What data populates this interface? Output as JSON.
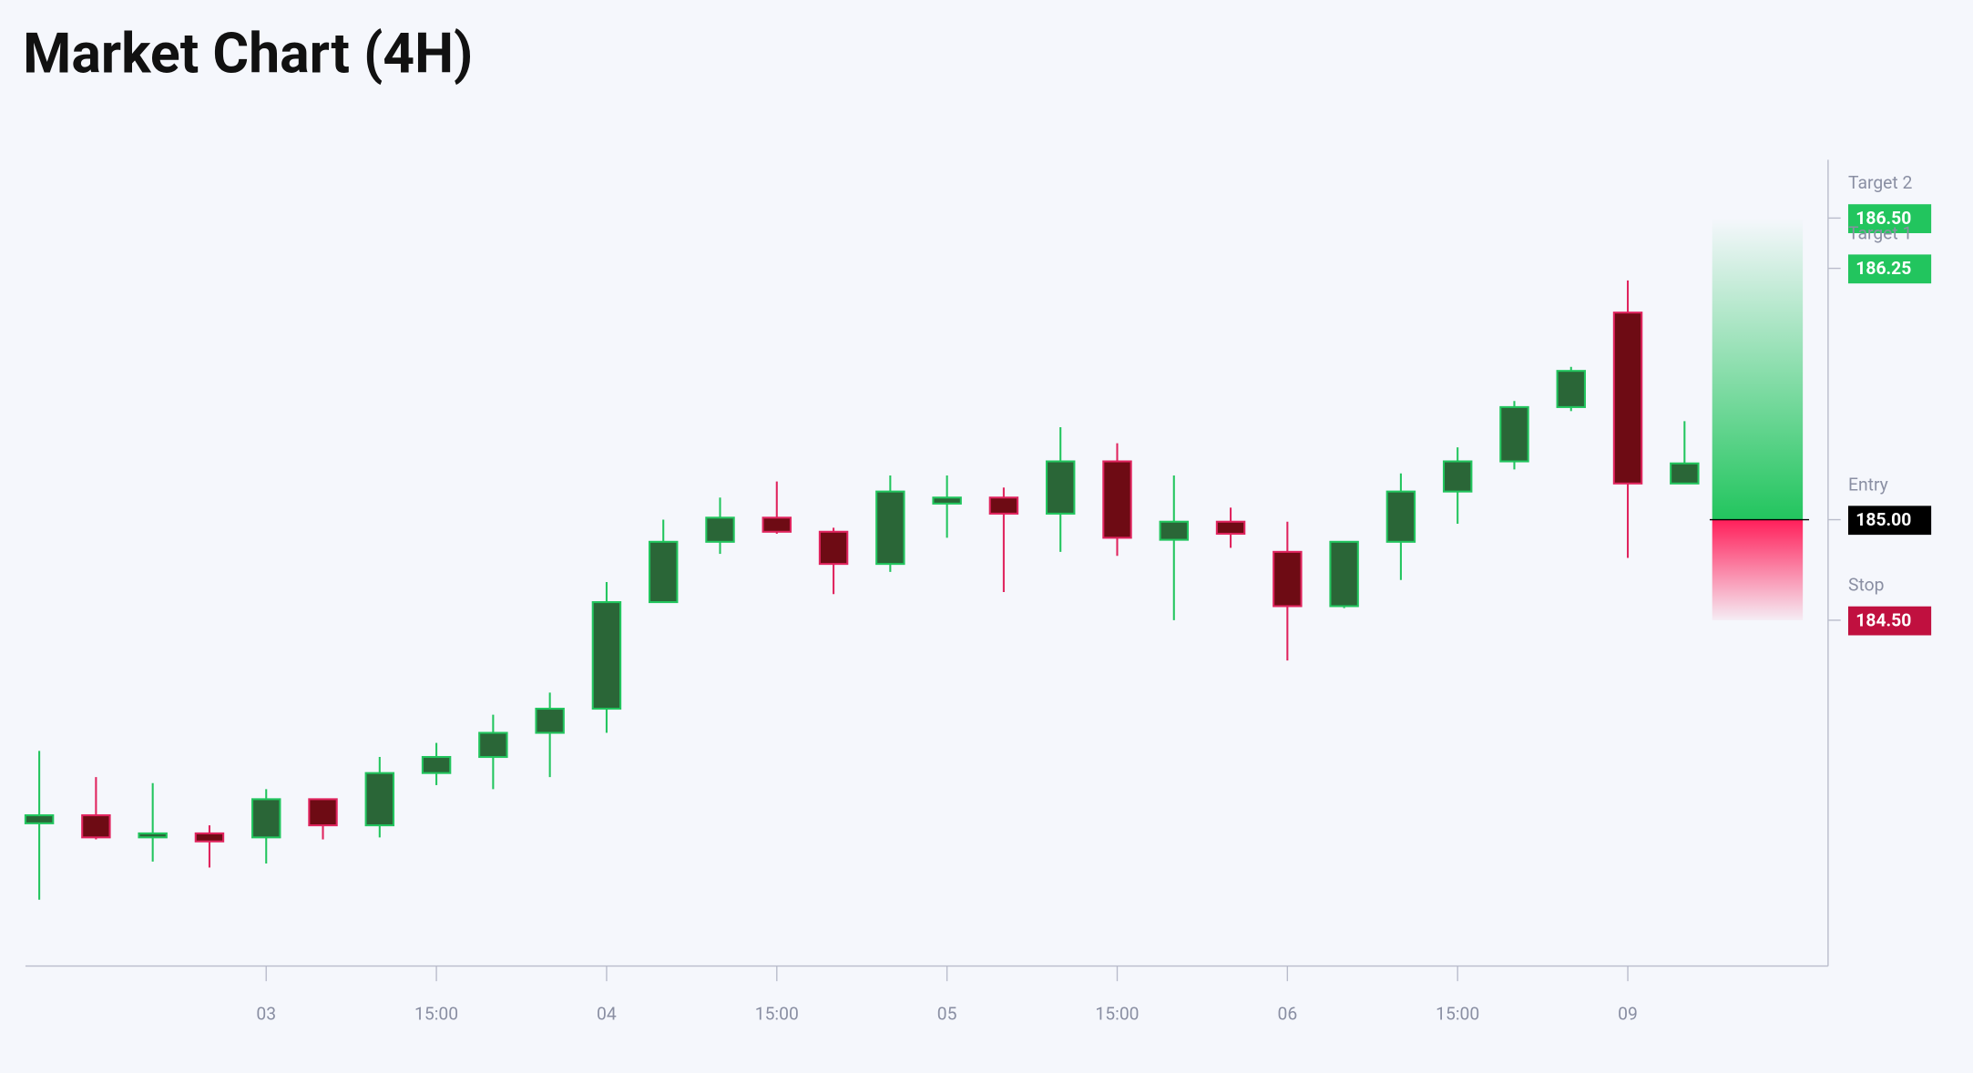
{
  "chart_data": {
    "type": "candlestick",
    "title": "Market Chart (4H)",
    "categories": [
      null,
      null,
      null,
      null,
      "03",
      null,
      null,
      "15:00",
      null,
      null,
      "04",
      null,
      null,
      "15:00",
      null,
      null,
      "05",
      null,
      null,
      "15:00",
      null,
      null,
      "06",
      null,
      null,
      "15:00",
      null,
      null,
      "09",
      null
    ],
    "open": [
      183.49,
      183.53,
      183.42,
      183.44,
      183.42,
      183.61,
      183.48,
      183.74,
      183.82,
      183.94,
      184.06,
      184.59,
      184.89,
      185.01,
      184.94,
      184.78,
      185.08,
      185.11,
      185.03,
      185.29,
      184.9,
      184.99,
      184.84,
      184.57,
      184.89,
      185.14,
      185.29,
      185.56,
      186.03,
      185.18
    ],
    "high": [
      183.85,
      183.72,
      183.69,
      183.48,
      183.66,
      183.61,
      183.82,
      183.89,
      184.03,
      184.14,
      184.69,
      185.0,
      185.11,
      185.19,
      184.96,
      185.22,
      185.22,
      185.16,
      185.46,
      185.38,
      185.22,
      185.06,
      184.99,
      184.89,
      185.23,
      185.36,
      185.59,
      185.76,
      186.19,
      185.49
    ],
    "low": [
      183.11,
      183.41,
      183.3,
      183.27,
      183.29,
      183.41,
      183.42,
      183.68,
      183.66,
      183.72,
      183.94,
      184.59,
      184.83,
      184.93,
      184.63,
      184.74,
      184.91,
      184.64,
      184.84,
      184.82,
      184.5,
      184.86,
      184.3,
      184.56,
      184.7,
      184.98,
      185.25,
      185.54,
      184.81,
      185.18
    ],
    "close": [
      183.53,
      183.42,
      183.44,
      183.4,
      183.61,
      183.48,
      183.74,
      183.82,
      183.94,
      184.06,
      184.59,
      184.89,
      185.01,
      184.94,
      184.78,
      185.14,
      185.11,
      185.03,
      185.29,
      184.91,
      184.99,
      184.93,
      184.57,
      184.89,
      185.14,
      185.29,
      185.56,
      185.74,
      185.18,
      185.28
    ],
    "up_color": "#22c55e",
    "up_fill": "#2a6637",
    "down_color": "#e0245e",
    "down_fill": "#6e0b14",
    "ylim": [
      182.78,
      186.79
    ],
    "levels": {
      "names": [
        "Target 2",
        "Target 1",
        "Entry",
        "Stop"
      ],
      "values": [
        186.5,
        186.25,
        185.0,
        184.5
      ],
      "value_labels": [
        "186.50",
        "186.25",
        "185.00",
        "184.50"
      ],
      "colors": [
        "#22c55e",
        "#22c55e",
        "#000000",
        "#c0103f"
      ]
    }
  }
}
